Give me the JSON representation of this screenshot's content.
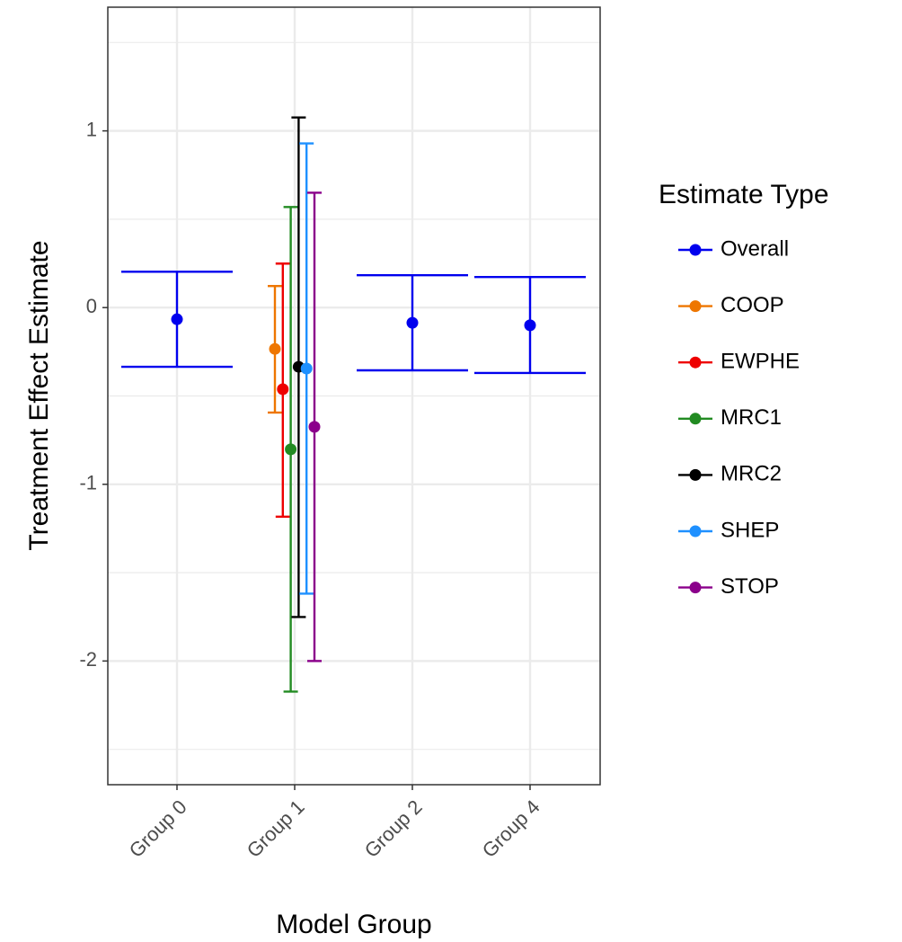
{
  "chart_data": {
    "type": "errorbar",
    "x_label": "Model Group",
    "y_label": "Treatment Effect Estimate",
    "legend_title": "Estimate Type",
    "legend_position": "right",
    "grid": true,
    "categories": [
      "Group 0",
      "Group 1",
      "Group 2",
      "Group 4"
    ],
    "ylim": [
      -2.7,
      1.7
    ],
    "yticks": [
      -2,
      -1,
      0,
      1
    ],
    "yminorticks": [
      -2.5,
      -1.5,
      -0.5,
      0.5,
      1.5
    ],
    "series": [
      {
        "name": "Overall",
        "color": "#0000ee",
        "values": [
          -0.066,
          null,
          -0.086,
          -0.1
        ],
        "lower": [
          -0.335,
          null,
          -0.355,
          -0.37
        ],
        "upper": [
          0.203,
          null,
          0.183,
          0.173
        ]
      },
      {
        "name": "COOP",
        "color": "#ee7600",
        "values": [
          null,
          -0.234,
          null,
          null
        ],
        "lower": [
          null,
          -0.594,
          null,
          null
        ],
        "upper": [
          null,
          0.122,
          null,
          null
        ]
      },
      {
        "name": "EWPHE",
        "color": "#ee0000",
        "values": [
          null,
          -0.462,
          null,
          null
        ],
        "lower": [
          null,
          -1.183,
          null,
          null
        ],
        "upper": [
          null,
          0.249,
          null,
          null
        ]
      },
      {
        "name": "MRC1",
        "color": "#228b22",
        "values": [
          null,
          -0.802,
          null,
          null
        ],
        "lower": [
          null,
          -2.173,
          null,
          null
        ],
        "upper": [
          null,
          0.569,
          null,
          null
        ]
      },
      {
        "name": "MRC2",
        "color": "#000000",
        "values": [
          null,
          -0.335,
          null,
          null
        ],
        "lower": [
          null,
          -1.751,
          null,
          null
        ],
        "upper": [
          null,
          1.076,
          null,
          null
        ]
      },
      {
        "name": "SHEP",
        "color": "#1e90ff",
        "values": [
          null,
          -0.345,
          null,
          null
        ],
        "lower": [
          null,
          -1.619,
          null,
          null
        ],
        "upper": [
          null,
          0.929,
          null,
          null
        ]
      },
      {
        "name": "STOP",
        "color": "#8b008b",
        "values": [
          null,
          -0.675,
          null,
          null
        ],
        "lower": [
          null,
          -2.0,
          null,
          null
        ],
        "upper": [
          null,
          0.65,
          null,
          null
        ]
      }
    ]
  }
}
